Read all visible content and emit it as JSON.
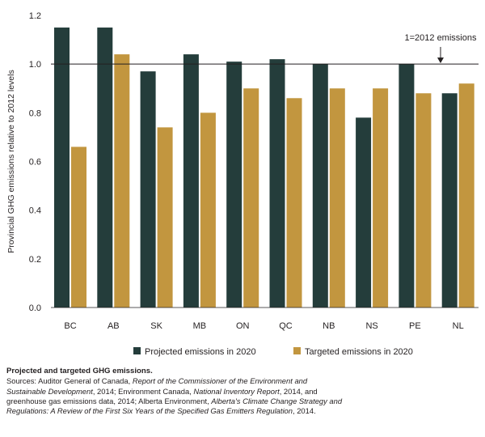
{
  "chart_data": {
    "type": "bar",
    "categories": [
      "BC",
      "AB",
      "SK",
      "MB",
      "ON",
      "QC",
      "NB",
      "NS",
      "PE",
      "NL"
    ],
    "series": [
      {
        "name": "Projected emissions in 2020",
        "values": [
          1.15,
          1.15,
          0.97,
          1.04,
          1.01,
          1.02,
          1.0,
          0.78,
          1.0,
          0.88
        ]
      },
      {
        "name": "Targeted emissions in 2020",
        "values": [
          0.66,
          1.04,
          0.74,
          0.8,
          0.9,
          0.86,
          0.9,
          0.9,
          0.88,
          0.92
        ]
      }
    ],
    "colors": [
      "#243d3b",
      "#c2963f"
    ],
    "ylabel": "Provincial GHG emissions relative to 2012 levels",
    "ylim": [
      0,
      1.2
    ],
    "yticks": [
      "0.0",
      "0.2",
      "0.4",
      "0.6",
      "0.8",
      "1.0",
      "1.2"
    ],
    "reference_line": {
      "value": 1.0,
      "label": "1=2012 emissions"
    },
    "grid": false,
    "legend_position": "bottom"
  },
  "caption": {
    "title": "Projected and targeted GHG emissions.",
    "parts": [
      {
        "text": "Sources: Auditor General of Canada, ",
        "italic": false
      },
      {
        "text": "Report of the Commissioner of the Environment and Sustainable Development",
        "italic": true
      },
      {
        "text": ", 2014; Environment Canada, ",
        "italic": false
      },
      {
        "text": "National Inventory Report",
        "italic": true
      },
      {
        "text": ", 2014, and greenhouse gas emissions data, 2014; Alberta Environment, ",
        "italic": false
      },
      {
        "text": "Alberta's Climate Change Strategy and Regulations: A Review of the First Six Years of the Specified Gas Emitters Regulation",
        "italic": true
      },
      {
        "text": ", 2014.",
        "italic": false
      }
    ]
  }
}
